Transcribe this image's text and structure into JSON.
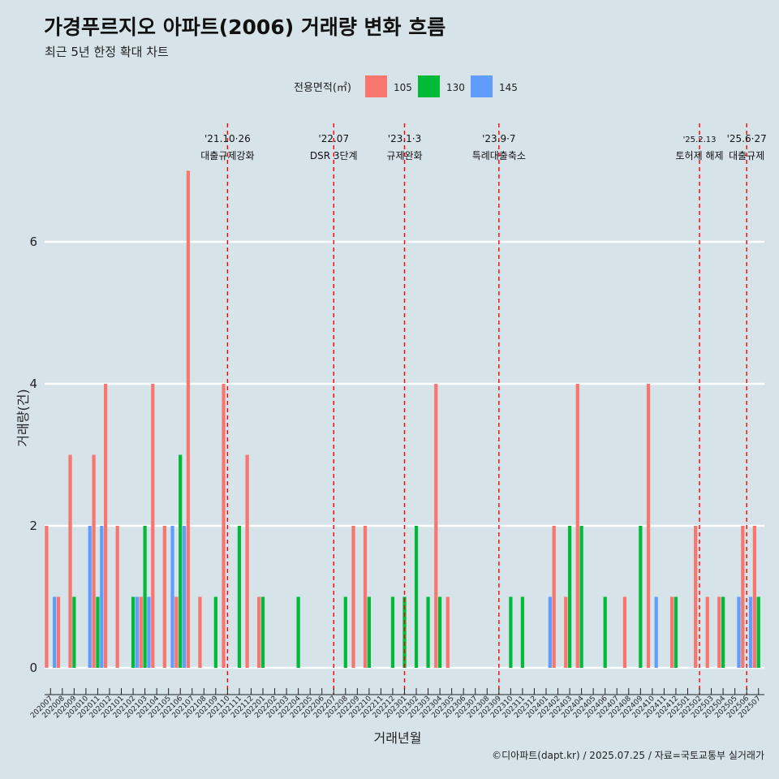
{
  "title": "가경푸르지오 아파트(2006) 거래량 변화 흐름",
  "subtitle": "최근 5년 한정 확대 차트",
  "caption": "©디아파트(dapt.kr) / 2025.07.25 / 자료=국토교통부 실거래가",
  "chart_data": {
    "type": "bar",
    "xlabel": "거래년월",
    "ylabel": "거래량(건)",
    "ylim": [
      0,
      7
    ],
    "yticks": [
      0,
      2,
      4,
      6
    ],
    "grid": true,
    "legend": {
      "title": "전용면적(㎡)",
      "placement": "top",
      "items": [
        {
          "name": "105",
          "color": "#f8766d"
        },
        {
          "name": "130",
          "color": "#00ba38"
        },
        {
          "name": "145",
          "color": "#619cff"
        }
      ]
    },
    "categories": [
      "202007",
      "202008",
      "202009",
      "202010",
      "202011",
      "202012",
      "202101",
      "202102",
      "202103",
      "202104",
      "202105",
      "202106",
      "202107",
      "202108",
      "202109",
      "202110",
      "202111",
      "202112",
      "202201",
      "202202",
      "202203",
      "202204",
      "202205",
      "202206",
      "202207",
      "202208",
      "202209",
      "202210",
      "202211",
      "202212",
      "202301",
      "202302",
      "202303",
      "202304",
      "202305",
      "202306",
      "202307",
      "202308",
      "202309",
      "202310",
      "202311",
      "202312",
      "202401",
      "202402",
      "202403",
      "202404",
      "202405",
      "202406",
      "202407",
      "202408",
      "202409",
      "202410",
      "202411",
      "202412",
      "202501",
      "202502",
      "202503",
      "202504",
      "202505",
      "202506",
      "202507"
    ],
    "series": [
      {
        "name": "105",
        "color": "#f8766d",
        "values": [
          2,
          1,
          3,
          0,
          3,
          4,
          2,
          0,
          1,
          4,
          2,
          1,
          7,
          1,
          0,
          4,
          0,
          3,
          1,
          0,
          0,
          0,
          0,
          0,
          0,
          0,
          2,
          2,
          0,
          0,
          0,
          0,
          0,
          4,
          1,
          0,
          0,
          0,
          0,
          0,
          0,
          0,
          0,
          2,
          1,
          4,
          0,
          0,
          0,
          1,
          0,
          4,
          0,
          1,
          0,
          2,
          1,
          1,
          0,
          2,
          2
        ]
      },
      {
        "name": "130",
        "color": "#00ba38",
        "values": [
          0,
          0,
          1,
          0,
          1,
          0,
          0,
          1,
          2,
          0,
          0,
          3,
          0,
          0,
          1,
          0,
          2,
          0,
          1,
          0,
          0,
          1,
          0,
          0,
          0,
          1,
          0,
          1,
          0,
          1,
          1,
          2,
          1,
          1,
          0,
          0,
          0,
          0,
          0,
          1,
          1,
          0,
          0,
          0,
          2,
          2,
          0,
          1,
          0,
          0,
          2,
          0,
          0,
          1,
          0,
          0,
          0,
          1,
          0,
          0,
          1
        ]
      },
      {
        "name": "145",
        "color": "#619cff",
        "values": [
          1,
          0,
          0,
          2,
          2,
          0,
          0,
          1,
          1,
          0,
          2,
          2,
          0,
          0,
          0,
          0,
          0,
          0,
          0,
          0,
          0,
          0,
          0,
          0,
          0,
          0,
          0,
          0,
          0,
          0,
          0,
          0,
          0,
          0,
          0,
          0,
          0,
          0,
          0,
          0,
          0,
          0,
          1,
          0,
          0,
          0,
          0,
          0,
          0,
          0,
          0,
          1,
          0,
          0,
          0,
          0,
          0,
          0,
          1,
          1,
          0
        ]
      }
    ],
    "annotations": [
      {
        "category": "202110",
        "date": "'21.10·26",
        "label": "대출규제강화"
      },
      {
        "category": "202207",
        "date": "'22.07",
        "label": "DSR 3단계"
      },
      {
        "category": "202301",
        "date": "'23.1·3",
        "label": "규제완화"
      },
      {
        "category": "202309",
        "date": "'23.9·7",
        "label": "특례대출축소"
      },
      {
        "category": "202502",
        "date": "'25.2.13",
        "label": "토허제 해제"
      },
      {
        "category": "202506",
        "date": "'25.6·27",
        "label": "대출규제"
      }
    ]
  }
}
